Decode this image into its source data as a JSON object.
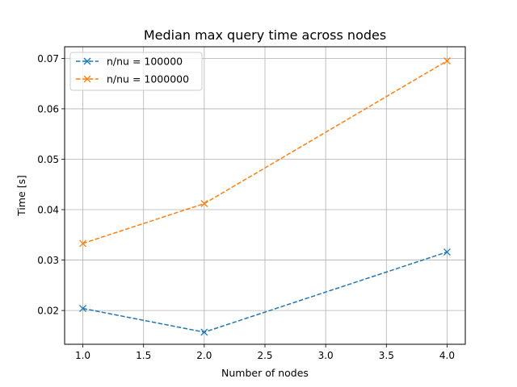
{
  "chart_data": {
    "type": "line",
    "title": "Median max query time across nodes",
    "xlabel": "Number of nodes",
    "ylabel": "Time [s]",
    "xlim": [
      0.85,
      4.15
    ],
    "ylim": [
      0.0133,
      0.0723
    ],
    "xticks": [
      1.0,
      1.5,
      2.0,
      2.5,
      3.0,
      3.5,
      4.0
    ],
    "xtick_labels": [
      "1.0",
      "1.5",
      "2.0",
      "2.5",
      "3.0",
      "3.5",
      "4.0"
    ],
    "yticks": [
      0.02,
      0.03,
      0.04,
      0.05,
      0.06,
      0.07
    ],
    "ytick_labels": [
      "0.02",
      "0.03",
      "0.04",
      "0.05",
      "0.06",
      "0.07"
    ],
    "grid": true,
    "legend_position": "top-left",
    "x": [
      1,
      2,
      4
    ],
    "series": [
      {
        "name": "n/nu = 100000",
        "color": "#1f77b4",
        "values": [
          0.0204,
          0.0157,
          0.0316
        ],
        "marker": "x",
        "linestyle": "dashed"
      },
      {
        "name": "n/nu = 1000000",
        "color": "#ff7f0e",
        "values": [
          0.0333,
          0.0412,
          0.0695
        ],
        "marker": "x",
        "linestyle": "dashed"
      }
    ]
  }
}
